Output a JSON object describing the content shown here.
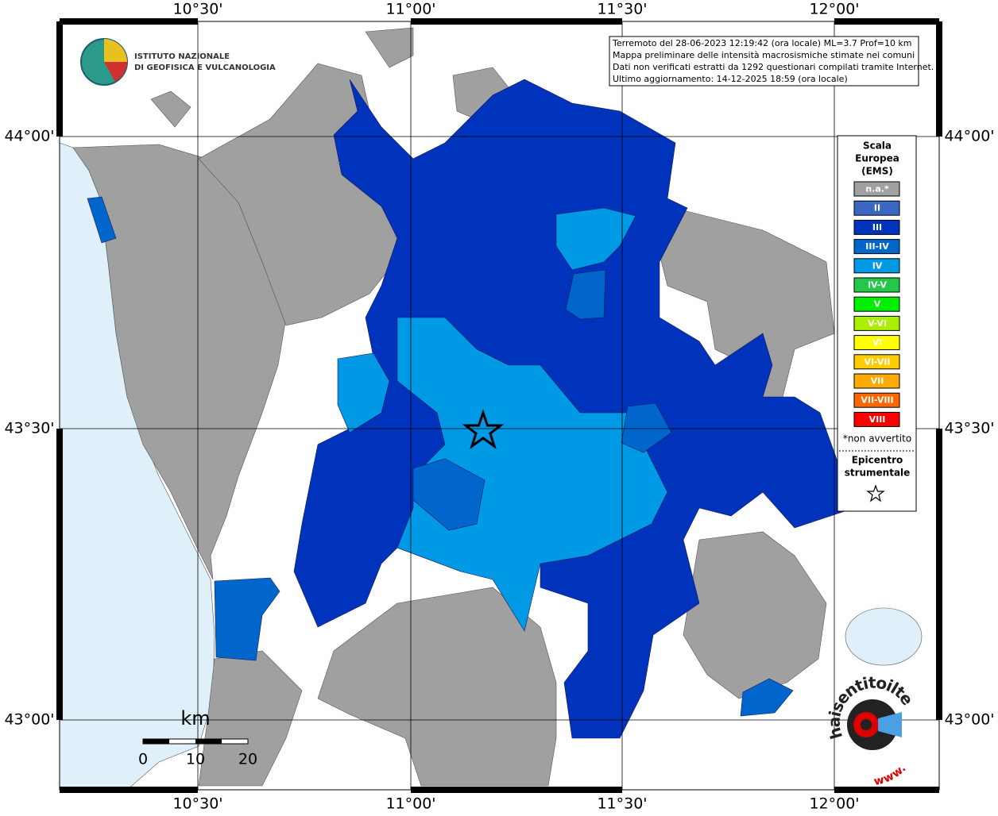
{
  "header": {
    "institute": [
      "ISTITUTO NAZIONALE",
      "DI GEOFISICA E VULCANOLOGIA"
    ]
  },
  "info": [
    "Terremoto del 28-06-2023 12:19:42 (ora locale) ML=3.7 Prof=10 km",
    "Mappa preliminare delle intensità macrosismiche stimate nei comuni",
    "Dati non verificati estratti da 1292 questionari compilati tramite Internet.",
    "Ultimo aggiornamento: 14-12-2025 18:59 (ora locale)"
  ],
  "graticule": {
    "lon": [
      "10°30'",
      "11°00'",
      "11°30'",
      "12°00'"
    ],
    "lat": [
      "44°00'",
      "43°30'",
      "43°00'"
    ]
  },
  "legend": {
    "title": [
      "Scala",
      "Europea",
      "(EMS)"
    ],
    "items": [
      {
        "label": "n.a.*",
        "color": "#a0a0a0"
      },
      {
        "label": "II",
        "color": "#3a66c4"
      },
      {
        "label": "III",
        "color": "#0033bb"
      },
      {
        "label": "III-IV",
        "color": "#0066cc"
      },
      {
        "label": "IV",
        "color": "#0099e6"
      },
      {
        "label": "IV-V",
        "color": "#22c84a"
      },
      {
        "label": "V",
        "color": "#00ee00"
      },
      {
        "label": "V-VI",
        "color": "#aaee00"
      },
      {
        "label": "VI",
        "color": "#ffff00"
      },
      {
        "label": "VI-VII",
        "color": "#ffcc00"
      },
      {
        "label": "VII",
        "color": "#ffaa00"
      },
      {
        "label": "VII-VIII",
        "color": "#ff6600"
      },
      {
        "label": "VIII",
        "color": "#ff0000"
      }
    ],
    "note": "*non avvertito",
    "epicentre": [
      "Epicentro",
      "strumentale"
    ]
  },
  "scale_bar": {
    "unit": "km",
    "labels": [
      "0",
      "10",
      "20"
    ]
  },
  "badge": {
    "text": "haisentitoilterremoto.it",
    "www": "www."
  }
}
